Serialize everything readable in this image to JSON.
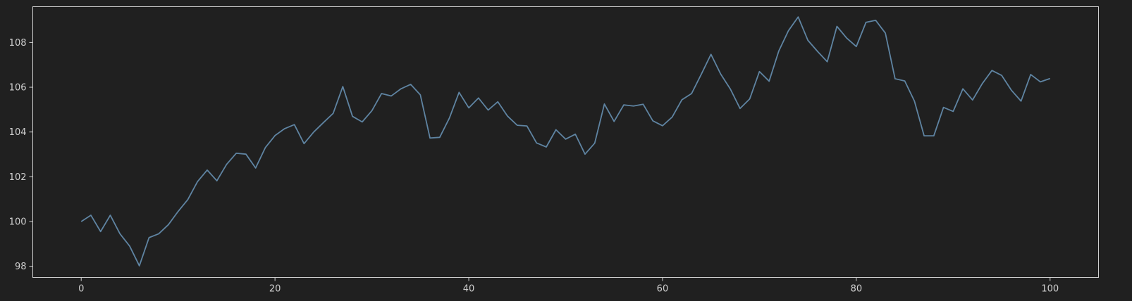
{
  "chart_data": {
    "type": "line",
    "title": "",
    "xlabel": "",
    "ylabel": "",
    "xlim": [
      -5,
      105
    ],
    "ylim": [
      97.5,
      109.6
    ],
    "xticks": [
      0,
      20,
      40,
      60,
      80,
      100
    ],
    "yticks": [
      98,
      100,
      102,
      104,
      106,
      108
    ],
    "grid": false,
    "line_color": "#5f84a2",
    "background": "#202020",
    "axis_color": "#cfcfcf",
    "series": [
      {
        "name": "series",
        "x": [
          0,
          1,
          2,
          3,
          4,
          5,
          6,
          7,
          8,
          9,
          10,
          11,
          12,
          13,
          14,
          15,
          16,
          17,
          18,
          19,
          20,
          21,
          22,
          23,
          24,
          25,
          26,
          27,
          28,
          29,
          30,
          31,
          32,
          33,
          34,
          35,
          36,
          37,
          38,
          39,
          40,
          41,
          42,
          43,
          44,
          45,
          46,
          47,
          48,
          49,
          50,
          51,
          52,
          53,
          54,
          55,
          56,
          57,
          58,
          59,
          60,
          61,
          62,
          63,
          64,
          65,
          66,
          67,
          68,
          69,
          70,
          71,
          72,
          73,
          74,
          75,
          76,
          77,
          78,
          79,
          80,
          81,
          82,
          83,
          84,
          85,
          86,
          87,
          88,
          89,
          90,
          91,
          92,
          93,
          94,
          95,
          96,
          97,
          98,
          99,
          100
        ],
        "values": [
          100.0,
          100.28,
          99.55,
          100.28,
          99.45,
          98.9,
          98.02,
          99.28,
          99.45,
          99.86,
          100.45,
          100.98,
          101.78,
          102.3,
          101.82,
          102.55,
          103.05,
          103.01,
          102.39,
          103.3,
          103.84,
          104.15,
          104.33,
          103.48,
          104.0,
          104.42,
          104.83,
          106.03,
          104.7,
          104.45,
          104.95,
          105.72,
          105.61,
          105.93,
          106.13,
          105.66,
          103.73,
          103.76,
          104.62,
          105.77,
          105.08,
          105.52,
          104.98,
          105.35,
          104.71,
          104.3,
          104.27,
          103.51,
          103.33,
          104.1,
          103.68,
          103.9,
          103.01,
          103.5,
          105.25,
          104.47,
          105.21,
          105.16,
          105.24,
          104.5,
          104.28,
          104.67,
          105.44,
          105.72,
          106.58,
          107.47,
          106.59,
          105.92,
          105.05,
          105.48,
          106.7,
          106.27,
          107.62,
          108.53,
          109.14,
          108.1,
          107.6,
          107.14,
          108.72,
          108.2,
          107.82,
          108.9,
          108.99,
          108.42,
          106.38,
          106.28,
          105.38,
          103.83,
          103.83,
          105.1,
          104.92,
          105.93,
          105.43,
          106.16,
          106.75,
          106.53,
          105.87,
          105.38,
          106.57,
          106.24,
          106.39
        ]
      }
    ]
  }
}
